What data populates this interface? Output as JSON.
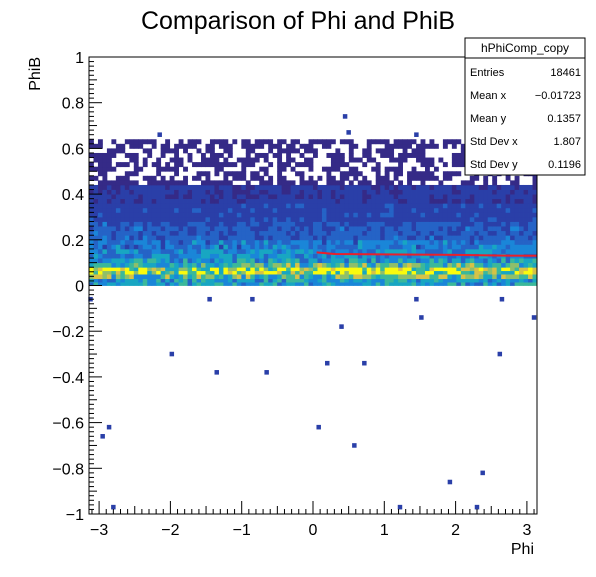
{
  "chart_data": {
    "type": "heatmap",
    "title": "Comparison of Phi and PhiB",
    "xlabel": "Phi",
    "ylabel": "PhiB",
    "xlim": [
      -3.1416,
      3.1416
    ],
    "ylim": [
      -1,
      1
    ],
    "xticks": [
      -3,
      -2,
      -1,
      0,
      1,
      2,
      3
    ],
    "xtick_labels": [
      "−3",
      "−2",
      "−1",
      "0",
      "1",
      "2",
      "3"
    ],
    "yticks": [
      -1,
      -0.8,
      -0.6,
      -0.4,
      -0.2,
      0,
      0.2,
      0.4,
      0.6,
      0.8,
      1
    ],
    "ytick_labels": [
      "−1",
      "−0.8",
      "−0.6",
      "−0.4",
      "−0.2",
      "0",
      "0.2",
      "0.4",
      "0.6",
      "0.8",
      "1"
    ],
    "grid": false,
    "colormap": [
      "#352a87",
      "#2a3fa8",
      "#2563c6",
      "#1a86d8",
      "#18a6c2",
      "#3bb89a",
      "#8fbf6a",
      "#d6c247",
      "#f9fb0e"
    ],
    "density_levels": [
      {
        "y_from": 0.0,
        "y_to": 0.03,
        "level": 0.45
      },
      {
        "y_from": 0.03,
        "y_to": 0.05,
        "level": 0.62
      },
      {
        "y_from": 0.05,
        "y_to": 0.08,
        "level": 0.85
      },
      {
        "y_from": 0.08,
        "y_to": 0.1,
        "level": 0.6
      },
      {
        "y_from": 0.1,
        "y_to": 0.12,
        "level": 0.45
      },
      {
        "y_from": 0.12,
        "y_to": 0.16,
        "level": 0.38
      },
      {
        "y_from": 0.16,
        "y_to": 0.2,
        "level": 0.32
      },
      {
        "y_from": 0.2,
        "y_to": 0.28,
        "level": 0.22
      },
      {
        "y_from": 0.28,
        "y_to": 0.36,
        "level": 0.14
      },
      {
        "y_from": 0.36,
        "y_to": 0.44,
        "level": 0.08
      },
      {
        "y_from": 0.44,
        "y_to": 0.5,
        "level": 0.04
      },
      {
        "y_from": 0.5,
        "y_to": 0.64,
        "level": 0.01
      }
    ],
    "outlier_points": [
      {
        "x": -3.12,
        "y": -0.06
      },
      {
        "x": -2.95,
        "y": -0.66
      },
      {
        "x": -2.86,
        "y": -0.62
      },
      {
        "x": -2.8,
        "y": -0.97
      },
      {
        "x": -2.15,
        "y": 0.66
      },
      {
        "x": -1.98,
        "y": -0.3
      },
      {
        "x": -1.45,
        "y": -0.06
      },
      {
        "x": -1.35,
        "y": -0.38
      },
      {
        "x": -0.85,
        "y": -0.06
      },
      {
        "x": -0.65,
        "y": -0.38
      },
      {
        "x": 0.08,
        "y": -0.62
      },
      {
        "x": 0.2,
        "y": -0.34
      },
      {
        "x": 0.4,
        "y": -0.18
      },
      {
        "x": 0.45,
        "y": 0.74
      },
      {
        "x": 0.5,
        "y": 0.67
      },
      {
        "x": 0.58,
        "y": -0.7
      },
      {
        "x": 0.72,
        "y": -0.34
      },
      {
        "x": 1.22,
        "y": -0.97
      },
      {
        "x": 1.45,
        "y": 0.66
      },
      {
        "x": 1.45,
        "y": -0.06
      },
      {
        "x": 1.52,
        "y": -0.14
      },
      {
        "x": 1.92,
        "y": -0.86
      },
      {
        "x": 2.3,
        "y": -0.97
      },
      {
        "x": 2.38,
        "y": -0.82
      },
      {
        "x": 2.62,
        "y": -0.3
      },
      {
        "x": 2.65,
        "y": -0.06
      },
      {
        "x": 3.1,
        "y": -0.14
      }
    ],
    "fit_line": {
      "color": "#e8202a",
      "points": [
        [
          0.05,
          0.145
        ],
        [
          0.3,
          0.138
        ],
        [
          1.0,
          0.136
        ],
        [
          2.0,
          0.134
        ],
        [
          2.7,
          0.131
        ],
        [
          3.14,
          0.13
        ]
      ]
    }
  },
  "stats_box": {
    "name": "hPhiComp_copy",
    "rows": [
      {
        "label": "Entries",
        "value": "18461"
      },
      {
        "label": "Mean x",
        "value": "−0.01723"
      },
      {
        "label": "Mean y",
        "value": "0.1357"
      },
      {
        "label": "Std Dev x",
        "value": "1.807"
      },
      {
        "label": "Std Dev y",
        "value": "0.1196"
      }
    ]
  }
}
